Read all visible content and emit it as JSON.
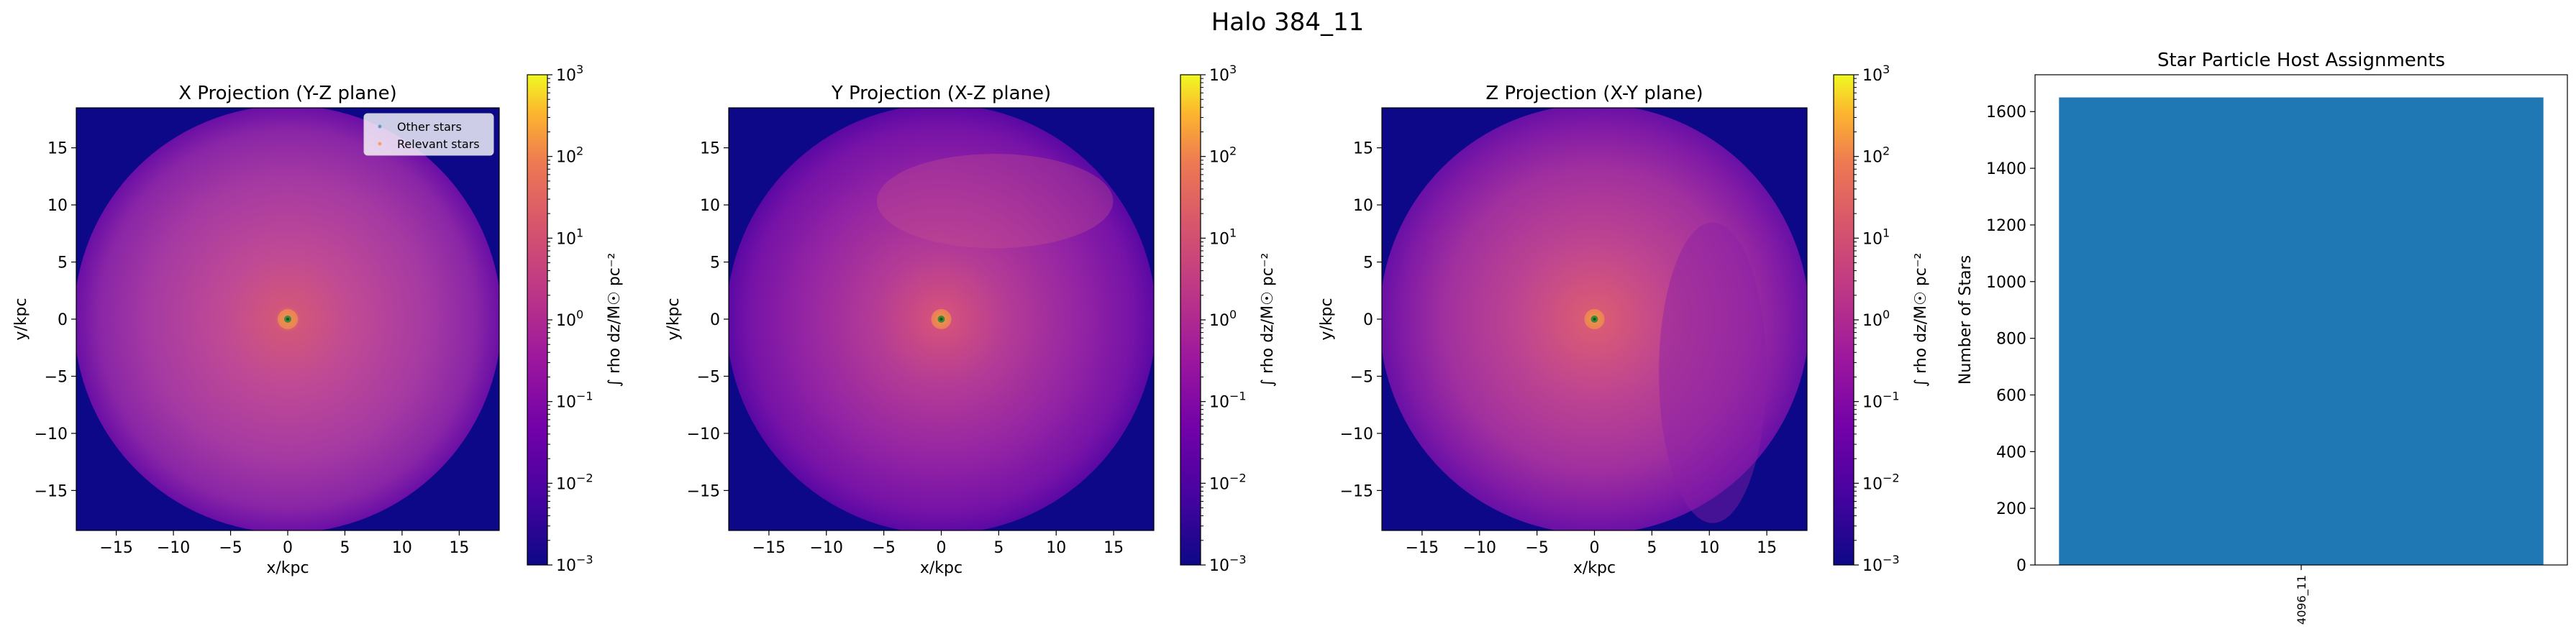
{
  "figure": {
    "suptitle": "Halo 384_11"
  },
  "chart_data": [
    {
      "type": "heatmap",
      "title": "X Projection (Y-Z plane)",
      "xlabel": "x/kpc",
      "ylabel": "y/kpc",
      "xlim": [
        -18.5,
        18.5
      ],
      "ylim": [
        -18.5,
        18.5
      ],
      "xticks": [
        -15,
        -10,
        -5,
        0,
        5,
        10,
        15
      ],
      "yticks": [
        -15,
        -10,
        -5,
        0,
        5,
        10,
        15
      ],
      "xtick_labels": [
        "−15",
        "−10",
        "−5",
        "0",
        "5",
        "10",
        "15"
      ],
      "ytick_labels": [
        "−15",
        "−10",
        "−5",
        "0",
        "5",
        "10",
        "15"
      ],
      "colormap": "plasma",
      "color_scale": "log",
      "colorbar_range": [
        0.001,
        1000
      ],
      "colorbar_label": "∫ rho dz/M☉ pc⁻²",
      "colorbar_ticks": [
        {
          "base": "10",
          "exp": "3"
        },
        {
          "base": "10",
          "exp": "2"
        },
        {
          "base": "10",
          "exp": "1"
        },
        {
          "base": "10",
          "exp": "0"
        },
        {
          "base": "10",
          "exp": "−1"
        },
        {
          "base": "10",
          "exp": "−2"
        },
        {
          "base": "10",
          "exp": "−3"
        }
      ],
      "halo_radius_kpc": 18.7,
      "center": [
        0,
        0
      ],
      "legend": {
        "position": "upper right",
        "entries": [
          {
            "label": "Other stars",
            "color": "#1f77b4"
          },
          {
            "label": "Relevant stars",
            "color": "#ff7f0e"
          }
        ]
      }
    },
    {
      "type": "heatmap",
      "title": "Y Projection (X-Z plane)",
      "xlabel": "x/kpc",
      "ylabel": "y/kpc",
      "xlim": [
        -18.5,
        18.5
      ],
      "ylim": [
        -18.5,
        18.5
      ],
      "xticks": [
        -15,
        -10,
        -5,
        0,
        5,
        10,
        15
      ],
      "yticks": [
        -15,
        -10,
        -5,
        0,
        5,
        10,
        15
      ],
      "xtick_labels": [
        "−15",
        "−10",
        "−5",
        "0",
        "5",
        "10",
        "15"
      ],
      "ytick_labels": [
        "−15",
        "−10",
        "−5",
        "0",
        "5",
        "10",
        "15"
      ],
      "colormap": "plasma",
      "color_scale": "log",
      "colorbar_range": [
        0.001,
        1000
      ],
      "colorbar_label": "∫ rho dz/M☉ pc⁻²",
      "colorbar_ticks": [
        {
          "base": "10",
          "exp": "3"
        },
        {
          "base": "10",
          "exp": "2"
        },
        {
          "base": "10",
          "exp": "1"
        },
        {
          "base": "10",
          "exp": "0"
        },
        {
          "base": "10",
          "exp": "−1"
        },
        {
          "base": "10",
          "exp": "−2"
        },
        {
          "base": "10",
          "exp": "−3"
        }
      ],
      "halo_radius_kpc": 18.7,
      "center": [
        0,
        0
      ]
    },
    {
      "type": "heatmap",
      "title": "Z Projection (X-Y plane)",
      "xlabel": "x/kpc",
      "ylabel": "y/kpc",
      "xlim": [
        -18.5,
        18.5
      ],
      "ylim": [
        -18.5,
        18.5
      ],
      "xticks": [
        -15,
        -10,
        -5,
        0,
        5,
        10,
        15
      ],
      "yticks": [
        -15,
        -10,
        -5,
        0,
        5,
        10,
        15
      ],
      "xtick_labels": [
        "−15",
        "−10",
        "−5",
        "0",
        "5",
        "10",
        "15"
      ],
      "ytick_labels": [
        "−15",
        "−10",
        "−5",
        "0",
        "5",
        "10",
        "15"
      ],
      "colormap": "plasma",
      "color_scale": "log",
      "colorbar_range": [
        0.001,
        1000
      ],
      "colorbar_label": "∫ rho dz/M☉ pc⁻²",
      "colorbar_ticks": [
        {
          "base": "10",
          "exp": "3"
        },
        {
          "base": "10",
          "exp": "2"
        },
        {
          "base": "10",
          "exp": "1"
        },
        {
          "base": "10",
          "exp": "0"
        },
        {
          "base": "10",
          "exp": "−1"
        },
        {
          "base": "10",
          "exp": "−2"
        },
        {
          "base": "10",
          "exp": "−3"
        }
      ],
      "halo_radius_kpc": 18.7,
      "center": [
        0,
        0
      ]
    },
    {
      "type": "bar",
      "title": "Star Particle Host Assignments",
      "categories": [
        "4096_11"
      ],
      "values": [
        1650
      ],
      "ylabel": "Number of Stars",
      "xlabel": "",
      "ylim": [
        0,
        1730
      ],
      "yticks": [
        0,
        200,
        400,
        600,
        800,
        1000,
        1200,
        1400,
        1600
      ],
      "bar_color": "#1f77b4"
    }
  ]
}
